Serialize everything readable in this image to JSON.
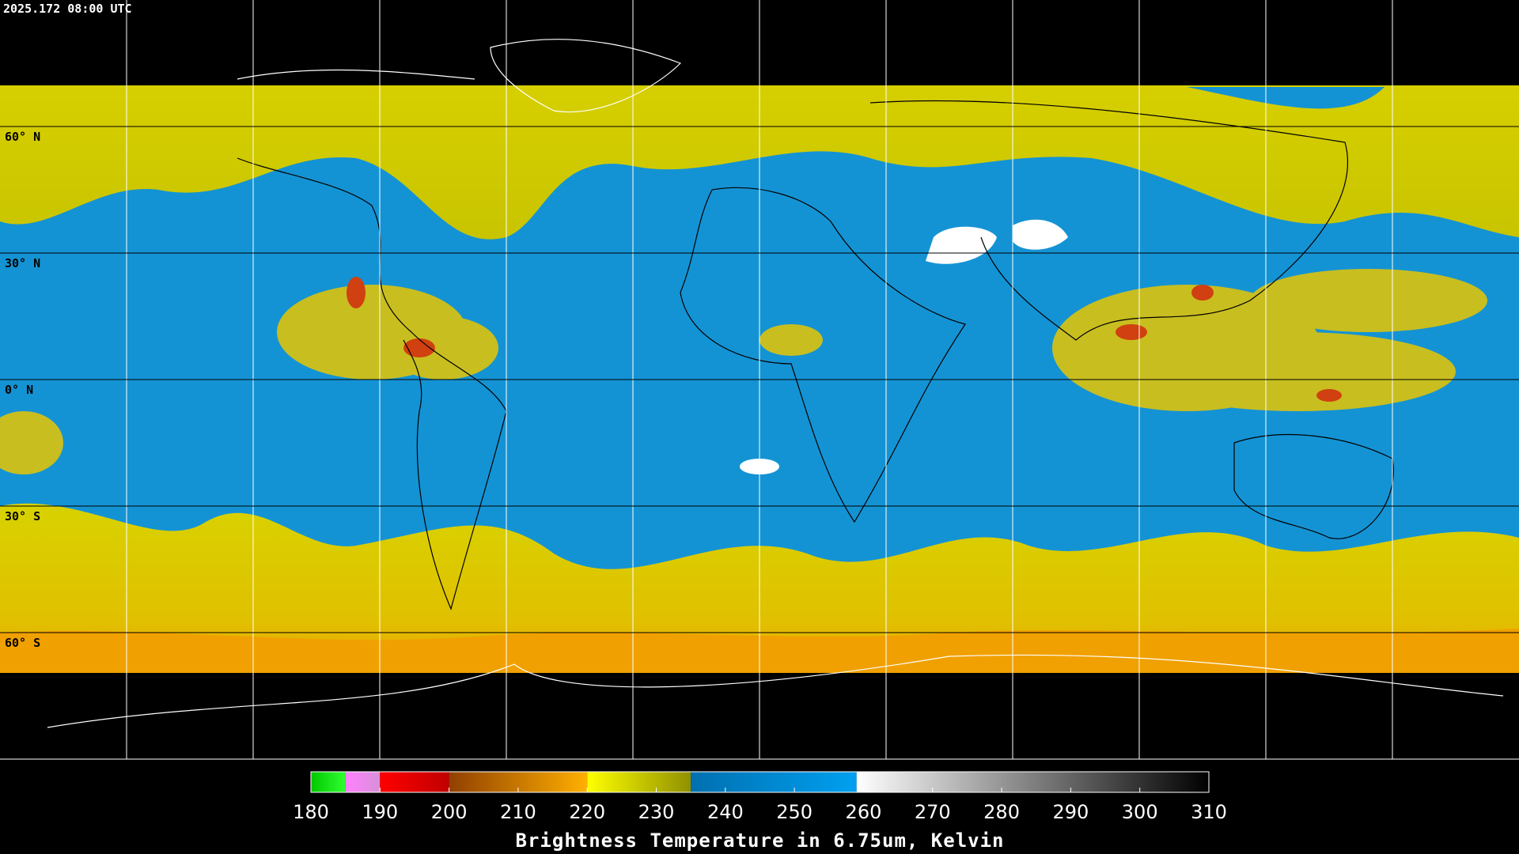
{
  "timestamp": "2025.172 08:00 UTC",
  "latitude_labels": [
    "60° N",
    "30° N",
    "0° N",
    "30° S",
    "60° S"
  ],
  "colorbar": {
    "title": "Brightness Temperature in 6.75um, Kelvin",
    "range": [
      180,
      310
    ],
    "ticks": [
      180,
      190,
      200,
      210,
      220,
      230,
      240,
      250,
      260,
      270,
      280,
      290,
      300,
      310
    ],
    "segments": [
      {
        "from": 180,
        "to": 185,
        "colors": [
          "#00c800",
          "#30ff30"
        ]
      },
      {
        "from": 185,
        "to": 190,
        "colors": [
          "#ff80ff",
          "#d890d8"
        ]
      },
      {
        "from": 190,
        "to": 200,
        "colors": [
          "#ff0000",
          "#c00000"
        ]
      },
      {
        "from": 200,
        "to": 220,
        "colors": [
          "#904000",
          "#ffb000"
        ]
      },
      {
        "from": 220,
        "to": 235,
        "colors": [
          "#ffff00",
          "#909000"
        ]
      },
      {
        "from": 235,
        "to": 259,
        "colors": [
          "#0070b0",
          "#00a0f0"
        ]
      },
      {
        "from": 259,
        "to": 310,
        "colors": [
          "#ffffff",
          "#000000"
        ]
      }
    ]
  }
}
